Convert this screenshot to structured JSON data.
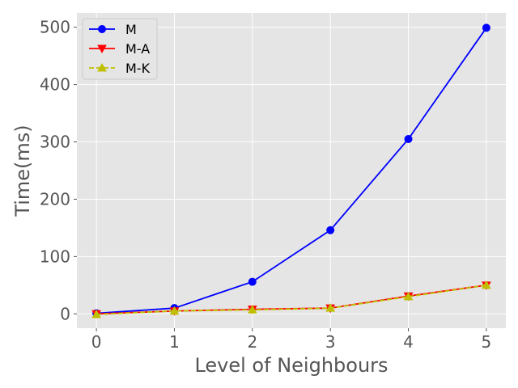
{
  "chart_data": {
    "type": "line",
    "title": "",
    "xlabel": "Level of Neighbours",
    "ylabel": "Time(ms)",
    "x": [
      0,
      1,
      2,
      3,
      4,
      5
    ],
    "xticks": [
      "0",
      "1",
      "2",
      "3",
      "4",
      "5"
    ],
    "yticks": [
      "0",
      "100",
      "200",
      "300",
      "400",
      "500"
    ],
    "xlim": [
      -0.25,
      5.25
    ],
    "ylim": [
      -25,
      525
    ],
    "grid": true,
    "legend_position": "top-left",
    "series": [
      {
        "name": "M",
        "values": [
          1,
          10,
          56,
          146,
          305,
          499
        ],
        "color": "#0000ff",
        "marker": "circle",
        "linestyle": "solid"
      },
      {
        "name": "M-A",
        "values": [
          0,
          5,
          8,
          10,
          31,
          50
        ],
        "color": "#ff0000",
        "marker": "triangle-down",
        "linestyle": "solid"
      },
      {
        "name": "M-K",
        "values": [
          -1,
          5,
          7,
          10,
          30,
          50
        ],
        "color": "#bfbf00",
        "marker": "triangle-up",
        "linestyle": "dashed"
      }
    ]
  }
}
